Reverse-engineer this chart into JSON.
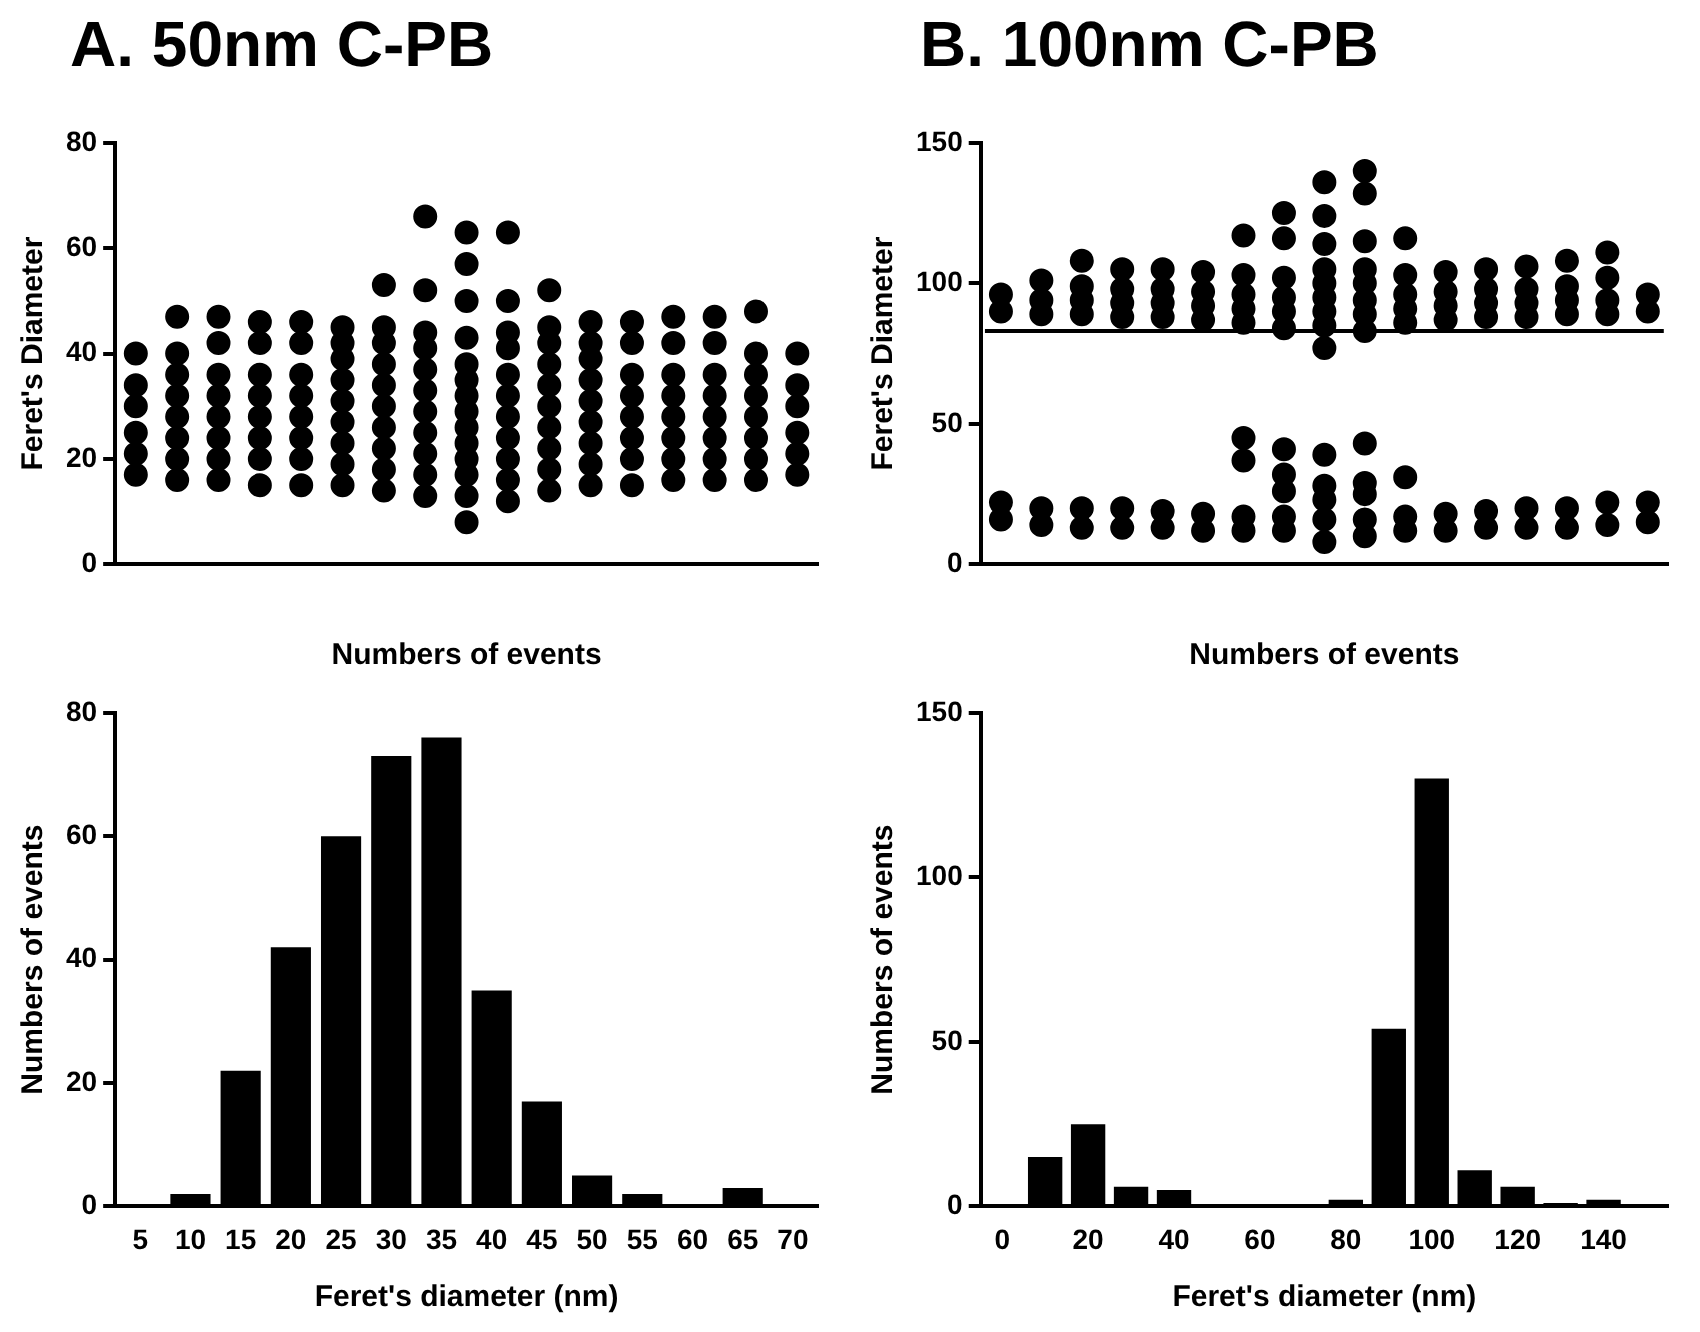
{
  "chart_data": [
    {
      "type": "scatter",
      "title": "A. 50nm C-PB",
      "xlabel": "Numbers of events",
      "ylabel": "Feret's Diameter",
      "ylim": [
        0,
        80
      ],
      "yticks": [
        0,
        20,
        40,
        60,
        80
      ],
      "grid": false,
      "legend": false,
      "marker": "circle",
      "categories": [
        null,
        null,
        null,
        null,
        null,
        null,
        null,
        null,
        null,
        null,
        null,
        null,
        null,
        null,
        null,
        null,
        null
      ],
      "series": [
        {
          "color": "#000000",
          "values": [
            17,
            16,
            16,
            15,
            15,
            15,
            14,
            13,
            8,
            12,
            14,
            15,
            15,
            16,
            16,
            16,
            17
          ]
        },
        {
          "color": "#000000",
          "values": [
            21,
            20,
            20,
            20,
            20,
            19,
            18,
            17,
            13,
            16,
            18,
            19,
            20,
            20,
            20,
            20,
            21
          ]
        },
        {
          "color": "#000000",
          "values": [
            25,
            24,
            24,
            24,
            24,
            23,
            22,
            21,
            17,
            20,
            22,
            23,
            24,
            24,
            24,
            24,
            25
          ]
        },
        {
          "color": "#000000",
          "values": [
            30,
            28,
            28,
            28,
            28,
            27,
            26,
            25,
            20,
            24,
            26,
            27,
            28,
            28,
            28,
            28,
            30
          ]
        },
        {
          "color": "#000000",
          "values": [
            34,
            32,
            32,
            32,
            32,
            31,
            30,
            29,
            23,
            28,
            30,
            31,
            32,
            32,
            32,
            32,
            34
          ]
        },
        {
          "color": "#000000",
          "values": [
            40,
            36,
            36,
            36,
            36,
            35,
            34,
            33,
            26,
            32,
            34,
            35,
            36,
            36,
            36,
            36,
            40
          ]
        },
        {
          "color": "#000000",
          "values": [
            null,
            40,
            42,
            42,
            42,
            39,
            38,
            37,
            29,
            36,
            38,
            39,
            42,
            42,
            42,
            40,
            null
          ]
        },
        {
          "color": "#000000",
          "values": [
            null,
            47,
            47,
            46,
            46,
            42,
            42,
            41,
            32,
            41,
            42,
            42,
            46,
            47,
            47,
            48,
            null
          ]
        },
        {
          "color": "#000000",
          "values": [
            null,
            null,
            null,
            null,
            null,
            45,
            45,
            44,
            35,
            44,
            45,
            46,
            null,
            null,
            null,
            null,
            null
          ]
        },
        {
          "color": "#000000",
          "values": [
            null,
            null,
            null,
            null,
            null,
            null,
            53,
            52,
            38,
            50,
            52,
            null,
            null,
            null,
            null,
            null,
            null
          ]
        },
        {
          "color": "#000000",
          "values": [
            null,
            null,
            null,
            null,
            null,
            null,
            null,
            66,
            43,
            63,
            null,
            null,
            null,
            null,
            null,
            null,
            null
          ]
        },
        {
          "color": "#000000",
          "values": [
            null,
            null,
            null,
            null,
            null,
            null,
            null,
            null,
            50,
            null,
            null,
            null,
            null,
            null,
            null,
            null,
            null
          ]
        },
        {
          "color": "#000000",
          "values": [
            null,
            null,
            null,
            null,
            null,
            null,
            null,
            null,
            57,
            null,
            null,
            null,
            null,
            null,
            null,
            null,
            null
          ]
        },
        {
          "color": "#000000",
          "values": [
            null,
            null,
            null,
            null,
            null,
            null,
            null,
            null,
            63,
            null,
            null,
            null,
            null,
            null,
            null,
            null,
            null
          ]
        }
      ]
    },
    {
      "type": "scatter",
      "title": "B. 100nm C-PB",
      "xlabel": "Numbers of events",
      "ylabel": "Feret's Diameter",
      "ylim": [
        0,
        150
      ],
      "yticks": [
        0,
        50,
        100,
        150
      ],
      "grid": false,
      "legend": false,
      "marker": "circle",
      "ref_lines": [
        {
          "axis": "y",
          "value": 83,
          "color": "#000000"
        }
      ],
      "categories": [
        null,
        null,
        null,
        null,
        null,
        null,
        null,
        null,
        null,
        null,
        null,
        null,
        null,
        null,
        null,
        null,
        null
      ],
      "series": [
        {
          "color": "#000000",
          "values": [
            16,
            14,
            13,
            13,
            13,
            12,
            12,
            12,
            8,
            10,
            12,
            12,
            13,
            13,
            13,
            14,
            15
          ]
        },
        {
          "color": "#000000",
          "values": [
            22,
            20,
            20,
            20,
            19,
            18,
            17,
            17,
            16,
            16,
            17,
            18,
            19,
            20,
            20,
            22,
            22
          ]
        },
        {
          "color": "#000000",
          "values": [
            90,
            89,
            89,
            88,
            88,
            87,
            37,
            26,
            23,
            25,
            31,
            87,
            88,
            88,
            89,
            89,
            90
          ]
        },
        {
          "color": "#000000",
          "values": [
            96,
            94,
            94,
            93,
            93,
            92,
            45,
            32,
            28,
            29,
            86,
            92,
            93,
            93,
            94,
            94,
            96
          ]
        },
        {
          "color": "#000000",
          "values": [
            null,
            101,
            99,
            98,
            98,
            97,
            86,
            41,
            39,
            43,
            91,
            97,
            98,
            98,
            99,
            102,
            null
          ]
        },
        {
          "color": "#000000",
          "values": [
            null,
            null,
            108,
            105,
            105,
            104,
            91,
            84,
            77,
            83,
            96,
            104,
            105,
            106,
            108,
            111,
            null
          ]
        },
        {
          "color": "#000000",
          "values": [
            null,
            null,
            null,
            null,
            null,
            null,
            96,
            90,
            85,
            89,
            103,
            null,
            null,
            null,
            null,
            null,
            null
          ]
        },
        {
          "color": "#000000",
          "values": [
            null,
            null,
            null,
            null,
            null,
            null,
            103,
            95,
            90,
            94,
            116,
            null,
            null,
            null,
            null,
            null,
            null
          ]
        },
        {
          "color": "#000000",
          "values": [
            null,
            null,
            null,
            null,
            null,
            null,
            117,
            102,
            95,
            100,
            null,
            null,
            null,
            null,
            null,
            null,
            null
          ]
        },
        {
          "color": "#000000",
          "values": [
            null,
            null,
            null,
            null,
            null,
            null,
            null,
            116,
            100,
            105,
            null,
            null,
            null,
            null,
            null,
            null,
            null
          ]
        },
        {
          "color": "#000000",
          "values": [
            null,
            null,
            null,
            null,
            null,
            null,
            null,
            125,
            105,
            115,
            null,
            null,
            null,
            null,
            null,
            null,
            null
          ]
        },
        {
          "color": "#000000",
          "values": [
            null,
            null,
            null,
            null,
            null,
            null,
            null,
            null,
            114,
            132,
            null,
            null,
            null,
            null,
            null,
            null,
            null
          ]
        },
        {
          "color": "#000000",
          "values": [
            null,
            null,
            null,
            null,
            null,
            null,
            null,
            null,
            124,
            140,
            null,
            null,
            null,
            null,
            null,
            null,
            null
          ]
        },
        {
          "color": "#000000",
          "values": [
            null,
            null,
            null,
            null,
            null,
            null,
            null,
            null,
            136,
            null,
            null,
            null,
            null,
            null,
            null,
            null,
            null
          ]
        }
      ]
    },
    {
      "type": "bar",
      "xlabel": "Feret's diameter (nm)",
      "ylabel": "Numbers of events",
      "ylim": [
        0,
        80
      ],
      "yticks": [
        0,
        20,
        40,
        60,
        80
      ],
      "grid": false,
      "legend": false,
      "color": "#000000",
      "categories": [
        "5",
        "10",
        "15",
        "20",
        "25",
        "30",
        "35",
        "40",
        "45",
        "50",
        "55",
        "60",
        "65",
        "70"
      ],
      "values": [
        0,
        2,
        22,
        42,
        60,
        73,
        76,
        35,
        17,
        5,
        2,
        0,
        3,
        0
      ]
    },
    {
      "type": "bar",
      "xlabel": "Feret's diameter (nm)",
      "ylabel": "Numbers of events",
      "ylim": [
        0,
        150
      ],
      "yticks": [
        0,
        50,
        100,
        150
      ],
      "grid": false,
      "legend": false,
      "color": "#000000",
      "categories": [
        "0",
        null,
        "20",
        null,
        "40",
        null,
        "60",
        null,
        "80",
        null,
        "100",
        null,
        "120",
        null,
        "140",
        null
      ],
      "values": [
        0,
        15,
        25,
        6,
        5,
        0,
        0,
        0,
        2,
        54,
        130,
        11,
        6,
        1,
        2,
        0
      ]
    }
  ]
}
